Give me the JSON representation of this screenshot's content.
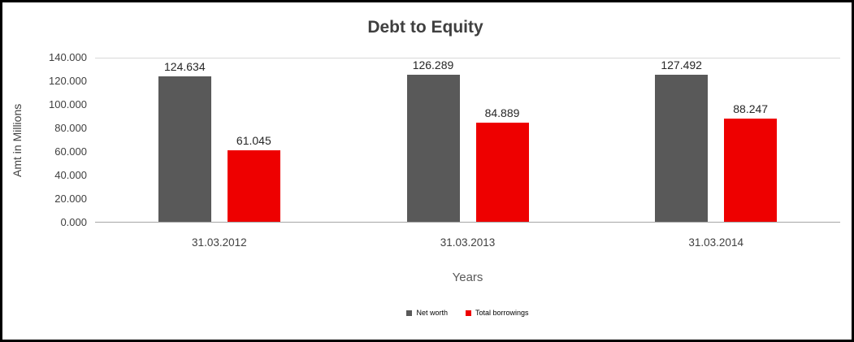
{
  "window": {
    "background": "#ffffff",
    "border_color": "#000000"
  },
  "chart_data": {
    "type": "bar",
    "title": "Debt to Equity",
    "xlabel": "Years",
    "ylabel": "Amt in Millions",
    "categories": [
      "31.03.2012",
      "31.03.2013",
      "31.03.2014"
    ],
    "series": [
      {
        "name": "Net worth",
        "color": "#595959",
        "values": [
          "124.634",
          "126.289",
          "127.492"
        ]
      },
      {
        "name": "Total borrowings",
        "color": "#ee0000",
        "values": [
          "61.045",
          "84.889",
          "88.247"
        ]
      }
    ],
    "y_ticks": [
      "140.000",
      "120.000",
      "100.000",
      "80.000",
      "60.000",
      "40.000",
      "20.000",
      "0.000"
    ],
    "ylim": [
      0,
      140
    ],
    "grid": false,
    "legend_position": "bottom"
  }
}
